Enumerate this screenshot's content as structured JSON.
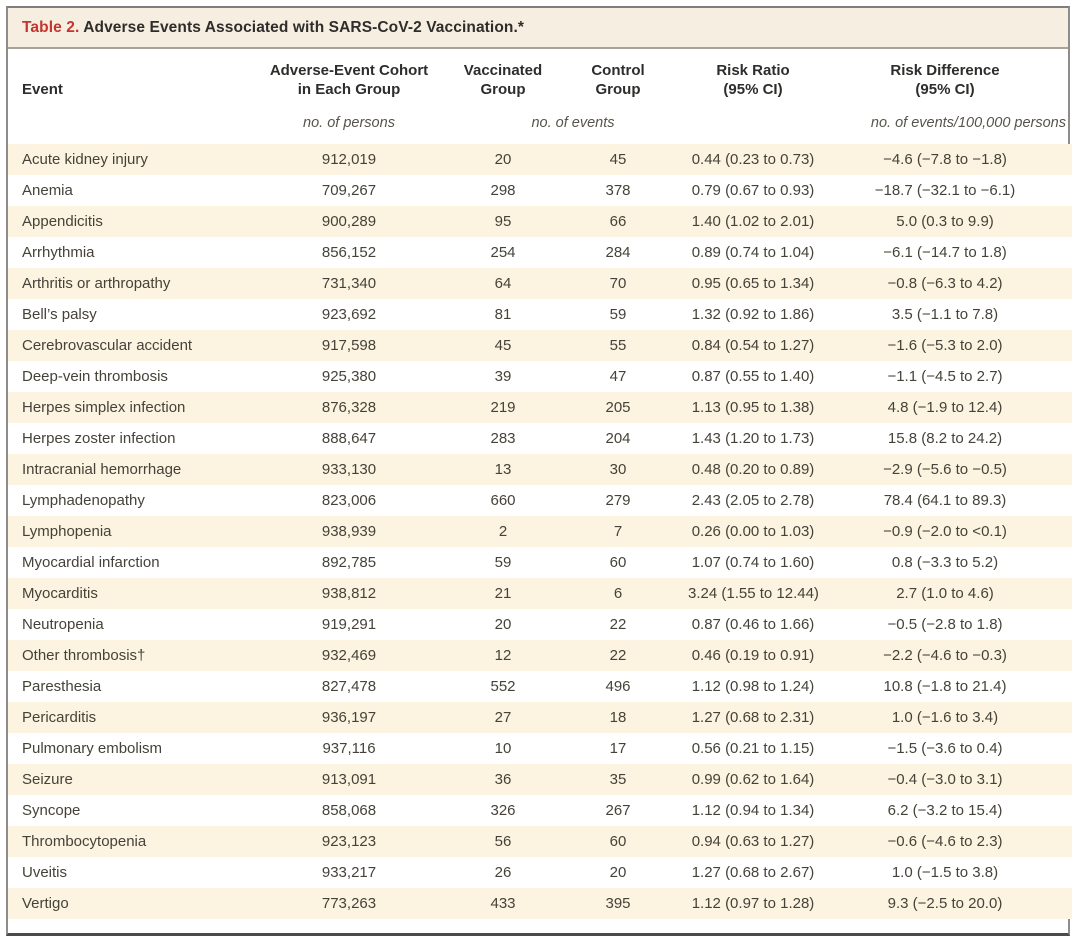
{
  "table": {
    "title_label": "Table 2.",
    "title_text": "Adverse Events Associated with SARS-CoV-2 Vaccination.*",
    "columns": [
      {
        "line1": "",
        "line2": "Event"
      },
      {
        "line1": "Adverse-Event Cohort",
        "line2": "in Each Group"
      },
      {
        "line1": "Vaccinated",
        "line2": "Group"
      },
      {
        "line1": "Control",
        "line2": "Group"
      },
      {
        "line1": "Risk Ratio",
        "line2": "(95% CI)"
      },
      {
        "line1": "Risk Difference",
        "line2": "(95% CI)"
      }
    ],
    "units": {
      "cohort": "no. of persons",
      "events": "no. of events",
      "risk_difference": "no. of events/100,000 persons"
    },
    "rows": [
      {
        "event": "Acute kidney injury",
        "cohort": "912,019",
        "vaccinated": "20",
        "control": "45",
        "risk_ratio": "0.44 (0.23 to 0.73)",
        "risk_diff": "−4.6 (−7.8 to −1.8)"
      },
      {
        "event": "Anemia",
        "cohort": "709,267",
        "vaccinated": "298",
        "control": "378",
        "risk_ratio": "0.79 (0.67 to 0.93)",
        "risk_diff": "−18.7 (−32.1 to −6.1)"
      },
      {
        "event": "Appendicitis",
        "cohort": "900,289",
        "vaccinated": "95",
        "control": "66",
        "risk_ratio": "1.40 (1.02 to 2.01)",
        "risk_diff": "5.0 (0.3 to 9.9)"
      },
      {
        "event": "Arrhythmia",
        "cohort": "856,152",
        "vaccinated": "254",
        "control": "284",
        "risk_ratio": "0.89 (0.74 to 1.04)",
        "risk_diff": "−6.1 (−14.7 to 1.8)"
      },
      {
        "event": "Arthritis or arthropathy",
        "cohort": "731,340",
        "vaccinated": "64",
        "control": "70",
        "risk_ratio": "0.95 (0.65 to 1.34)",
        "risk_diff": "−0.8 (−6.3 to 4.2)"
      },
      {
        "event": "Bell’s palsy",
        "cohort": "923,692",
        "vaccinated": "81",
        "control": "59",
        "risk_ratio": "1.32 (0.92 to 1.86)",
        "risk_diff": "3.5 (−1.1 to 7.8)"
      },
      {
        "event": "Cerebrovascular accident",
        "cohort": "917,598",
        "vaccinated": "45",
        "control": "55",
        "risk_ratio": "0.84 (0.54 to 1.27)",
        "risk_diff": "−1.6 (−5.3 to 2.0)"
      },
      {
        "event": "Deep-vein thrombosis",
        "cohort": "925,380",
        "vaccinated": "39",
        "control": "47",
        "risk_ratio": "0.87 (0.55 to 1.40)",
        "risk_diff": "−1.1 (−4.5 to 2.7)"
      },
      {
        "event": "Herpes simplex infection",
        "cohort": "876,328",
        "vaccinated": "219",
        "control": "205",
        "risk_ratio": "1.13 (0.95 to 1.38)",
        "risk_diff": "4.8 (−1.9 to 12.4)"
      },
      {
        "event": "Herpes zoster infection",
        "cohort": "888,647",
        "vaccinated": "283",
        "control": "204",
        "risk_ratio": "1.43 (1.20 to 1.73)",
        "risk_diff": "15.8 (8.2 to 24.2)"
      },
      {
        "event": "Intracranial hemorrhage",
        "cohort": "933,130",
        "vaccinated": "13",
        "control": "30",
        "risk_ratio": "0.48 (0.20 to 0.89)",
        "risk_diff": "−2.9 (−5.6 to −0.5)"
      },
      {
        "event": "Lymphadenopathy",
        "cohort": "823,006",
        "vaccinated": "660",
        "control": "279",
        "risk_ratio": "2.43 (2.05 to 2.78)",
        "risk_diff": "78.4 (64.1 to 89.3)"
      },
      {
        "event": "Lymphopenia",
        "cohort": "938,939",
        "vaccinated": "2",
        "control": "7",
        "risk_ratio": "0.26 (0.00 to 1.03)",
        "risk_diff": "−0.9 (−2.0 to <0.1)"
      },
      {
        "event": "Myocardial infarction",
        "cohort": "892,785",
        "vaccinated": "59",
        "control": "60",
        "risk_ratio": "1.07 (0.74 to 1.60)",
        "risk_diff": "0.8 (−3.3 to 5.2)"
      },
      {
        "event": "Myocarditis",
        "cohort": "938,812",
        "vaccinated": "21",
        "control": "6",
        "risk_ratio": "3.24 (1.55 to 12.44)",
        "risk_diff": "2.7 (1.0 to 4.6)"
      },
      {
        "event": "Neutropenia",
        "cohort": "919,291",
        "vaccinated": "20",
        "control": "22",
        "risk_ratio": "0.87 (0.46 to 1.66)",
        "risk_diff": "−0.5 (−2.8 to 1.8)"
      },
      {
        "event": "Other thrombosis†",
        "cohort": "932,469",
        "vaccinated": "12",
        "control": "22",
        "risk_ratio": "0.46 (0.19 to 0.91)",
        "risk_diff": "−2.2 (−4.6 to −0.3)"
      },
      {
        "event": "Paresthesia",
        "cohort": "827,478",
        "vaccinated": "552",
        "control": "496",
        "risk_ratio": "1.12 (0.98 to 1.24)",
        "risk_diff": "10.8 (−1.8 to 21.4)"
      },
      {
        "event": "Pericarditis",
        "cohort": "936,197",
        "vaccinated": "27",
        "control": "18",
        "risk_ratio": "1.27 (0.68 to 2.31)",
        "risk_diff": "1.0 (−1.6 to 3.4)"
      },
      {
        "event": "Pulmonary embolism",
        "cohort": "937,116",
        "vaccinated": "10",
        "control": "17",
        "risk_ratio": "0.56 (0.21 to 1.15)",
        "risk_diff": "−1.5 (−3.6 to 0.4)"
      },
      {
        "event": "Seizure",
        "cohort": "913,091",
        "vaccinated": "36",
        "control": "35",
        "risk_ratio": "0.99 (0.62 to 1.64)",
        "risk_diff": "−0.4 (−3.0 to 3.1)"
      },
      {
        "event": "Syncope",
        "cohort": "858,068",
        "vaccinated": "326",
        "control": "267",
        "risk_ratio": "1.12 (0.94 to 1.34)",
        "risk_diff": "6.2 (−3.2 to 15.4)"
      },
      {
        "event": "Thrombocytopenia",
        "cohort": "923,123",
        "vaccinated": "56",
        "control": "60",
        "risk_ratio": "0.94 (0.63 to 1.27)",
        "risk_diff": "−0.6 (−4.6 to 2.3)"
      },
      {
        "event": "Uveitis",
        "cohort": "933,217",
        "vaccinated": "26",
        "control": "20",
        "risk_ratio": "1.27 (0.68 to 2.67)",
        "risk_diff": "1.0 (−1.5 to 3.8)"
      },
      {
        "event": "Vertigo",
        "cohort": "773,263",
        "vaccinated": "433",
        "control": "395",
        "risk_ratio": "1.12 (0.97 to 1.28)",
        "risk_diff": "9.3 (−2.5 to 20.0)"
      }
    ],
    "colors": {
      "title_accent": "#c5342e",
      "stripe_cream": "#fcf4e1",
      "title_bar_bg": "#f6efe1",
      "text": "#454239",
      "heavy_rule": "#4b4a4c"
    }
  }
}
